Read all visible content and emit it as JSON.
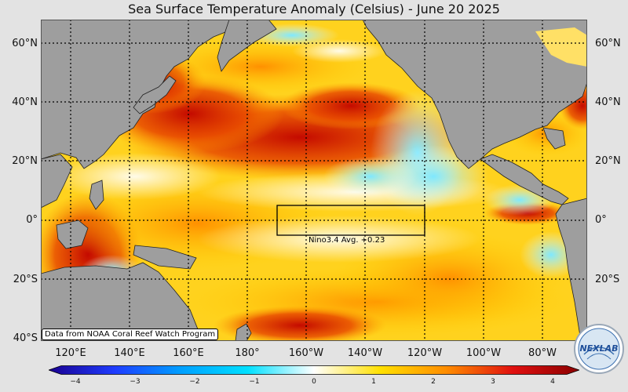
{
  "title": "Sea Surface Temperature Anomaly (Celsius) - June 20 2025",
  "lat_labels": [
    "60°N",
    "40°N",
    "20°N",
    "0°",
    "20°S",
    "40°S"
  ],
  "lon_labels": [
    "120°E",
    "140°E",
    "160°E",
    "180°",
    "160°W",
    "140°W",
    "120°W",
    "100°W",
    "80°W"
  ],
  "nino_label": "Nino3.4 Avg. +0.23",
  "credit": "Data from NOAA Coral Reef Watch Program",
  "colorbar": {
    "ticks": [
      "−4",
      "−3",
      "−2",
      "−1",
      "0",
      "1",
      "2",
      "3",
      "4"
    ],
    "colors": [
      "#1a0090",
      "#1e3cff",
      "#00a0ff",
      "#00e0ff",
      "#ffffff",
      "#ffe000",
      "#ff8c00",
      "#e01010",
      "#8a0000"
    ]
  },
  "logo_text": "NEXLAB",
  "colors": {
    "land": "#9e9e9e",
    "ocean_warm": "#ffb000",
    "ocean_hot": "#d01000",
    "ocean_cool": "#aef0ff",
    "gridline": "#000000"
  }
}
